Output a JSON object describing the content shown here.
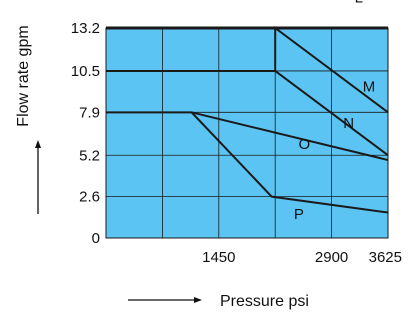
{
  "chart_data": {
    "type": "line",
    "xlabel": "Pressure psi",
    "ylabel": "Flow rate gpm",
    "xlim": [
      0,
      3625
    ],
    "ylim": [
      0,
      13.2
    ],
    "x_ticks": [
      {
        "value": 1450,
        "label": "1450"
      },
      {
        "value": 2900,
        "label": "2900"
      },
      {
        "value": 3625,
        "label": "3625"
      }
    ],
    "y_ticks": [
      {
        "value": 0,
        "label": "0"
      },
      {
        "value": 2.6,
        "label": "2.6"
      },
      {
        "value": 5.2,
        "label": "5.2"
      },
      {
        "value": 7.9,
        "label": "7.9"
      },
      {
        "value": 10.5,
        "label": "10.5"
      },
      {
        "value": 13.2,
        "label": "13.2"
      }
    ],
    "x_gridlines": [
      725,
      1450,
      2175,
      2900,
      3625
    ],
    "grid": true,
    "background_color": "#5cc4f2",
    "line_color": "#1a1a1a",
    "series": [
      {
        "name": "L",
        "x": [
          0,
          3625
        ],
        "y": [
          13.2,
          13.2
        ]
      },
      {
        "name": "M",
        "x": [
          0,
          2175,
          2175,
          3625
        ],
        "y": [
          10.5,
          10.5,
          13.2,
          7.9
        ]
      },
      {
        "name": "N",
        "x": [
          2175,
          3625
        ],
        "y": [
          10.5,
          5.2
        ]
      },
      {
        "name": "O",
        "x": [
          0,
          1100,
          3625
        ],
        "y": [
          7.9,
          7.9,
          4.9
        ]
      },
      {
        "name": "P",
        "x": [
          1100,
          2130,
          3625
        ],
        "y": [
          7.9,
          2.6,
          1.6
        ]
      }
    ],
    "series_labels": [
      {
        "name": "L",
        "x": 3250,
        "y": 14.8
      },
      {
        "name": "M",
        "x": 3380,
        "y": 9.2
      },
      {
        "name": "N",
        "x": 3120,
        "y": 6.9
      },
      {
        "name": "O",
        "x": 2550,
        "y": 5.6
      },
      {
        "name": "P",
        "x": 2480,
        "y": 1.2
      }
    ]
  }
}
